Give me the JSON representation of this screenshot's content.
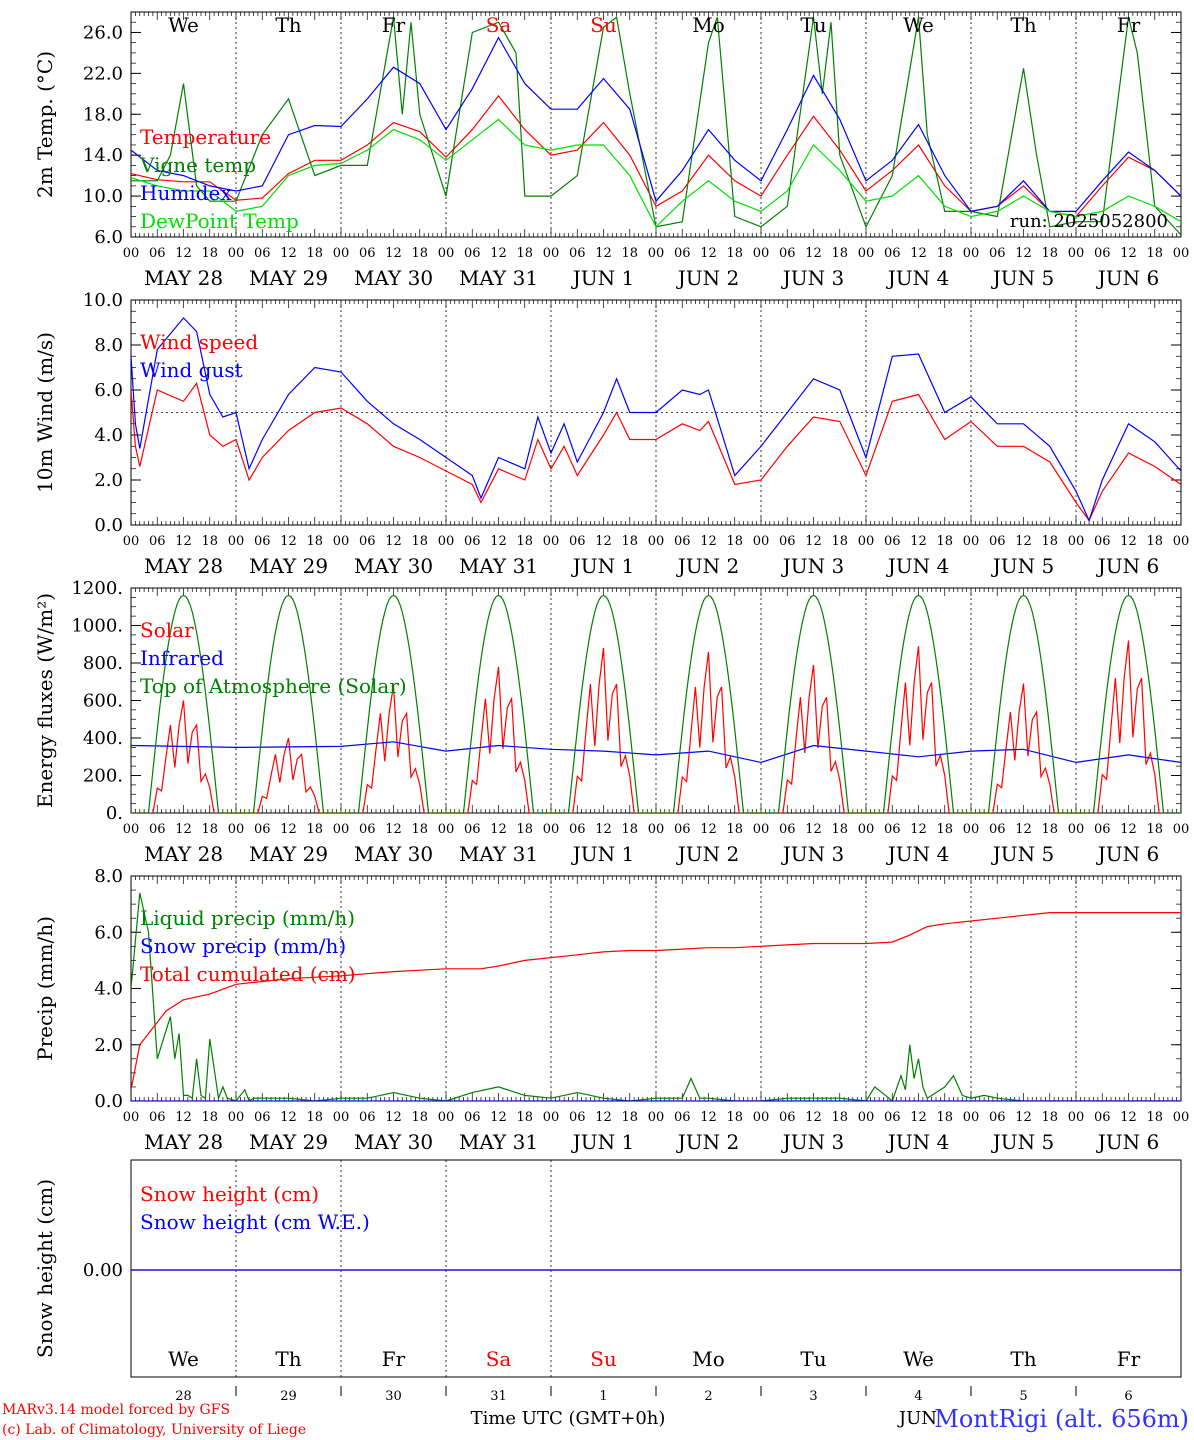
{
  "run_label": "run: 2025052800",
  "station": "MontRigi (alt. 656m)",
  "footer": {
    "model_line": "MARv3.14 model forced by GFS",
    "credit_line": "(c) Lab. of Climatology, University of Liege",
    "time_axis_label": "Time UTC (GMT+0h)",
    "month_label": "JUN"
  },
  "days": {
    "weekdays": [
      "We",
      "Th",
      "Fr",
      "Sa",
      "Su",
      "Mo",
      "Tu",
      "We",
      "Th",
      "Fr"
    ],
    "weekend_flags": [
      false,
      false,
      false,
      true,
      true,
      false,
      false,
      false,
      false,
      false
    ],
    "date_labels": [
      "MAY 28",
      "MAY 29",
      "MAY 30",
      "MAY 31",
      "JUN  1",
      "JUN  2",
      "JUN  3",
      "JUN  4",
      "JUN  5",
      "JUN  6"
    ],
    "day_numbers": [
      "28",
      "29",
      "30",
      "31",
      "1",
      "2",
      "3",
      "4",
      "5",
      "6"
    ],
    "hour_ticks": [
      "00",
      "06",
      "12",
      "18"
    ],
    "final_tick": "00"
  },
  "colors": {
    "red": "#ff0000",
    "dark_green": "#008000",
    "blue": "#0000ff",
    "light_green": "#00e000",
    "axis": "#000000",
    "station": "#3333ff"
  },
  "chart_data": [
    {
      "type": "line",
      "ylabel": "2m Temp. (°C)",
      "ylim": [
        6,
        28
      ],
      "yticks": [
        "6.0",
        "10.0",
        "14.0",
        "18.0",
        "22.0",
        "26.0"
      ],
      "ytick_values": [
        6,
        10,
        14,
        18,
        22,
        26
      ],
      "x_unit": "hours since MAY 28 00 UTC",
      "hline": null,
      "series": [
        {
          "name": "Temperature",
          "color": "#ff0000",
          "x": [
            0,
            6,
            12,
            18,
            24,
            30,
            36,
            42,
            48,
            54,
            60,
            66,
            72,
            78,
            84,
            90,
            96,
            102,
            108,
            114,
            120,
            126,
            132,
            138,
            144,
            150,
            156,
            162,
            168,
            174,
            180,
            186,
            192,
            198,
            204,
            210,
            216,
            222,
            228,
            234,
            240
          ],
          "y": [
            12.2,
            11.6,
            11.4,
            11.4,
            9.6,
            9.8,
            12.2,
            13.5,
            13.5,
            15.0,
            17.2,
            16.3,
            13.8,
            16.5,
            19.8,
            16.5,
            14.0,
            14.5,
            17.2,
            14.0,
            9.0,
            10.5,
            14.0,
            11.5,
            10.0,
            14.0,
            17.8,
            14.5,
            10.5,
            12.5,
            15.0,
            11.0,
            8.5,
            9.0,
            11.0,
            8.5,
            8.0,
            11.0,
            13.8,
            12.5,
            10.0
          ]
        },
        {
          "name": "Vigne temp",
          "color": "#008000",
          "x": [
            0,
            6,
            9,
            12,
            15,
            18,
            24,
            30,
            36,
            42,
            48,
            54,
            60,
            62,
            64,
            66,
            72,
            78,
            84,
            88,
            90,
            96,
            102,
            108,
            111,
            114,
            120,
            126,
            132,
            134,
            138,
            144,
            150,
            156,
            158,
            160,
            162,
            168,
            174,
            180,
            182,
            186,
            192,
            198,
            204,
            207,
            210,
            216,
            222,
            228,
            230,
            234,
            240
          ],
          "y": [
            11.5,
            11.5,
            14.0,
            21.0,
            11.0,
            9.5,
            9.5,
            16.0,
            19.5,
            12.0,
            13.0,
            13.0,
            27.5,
            18.0,
            27.0,
            18.0,
            10.0,
            26.0,
            27.0,
            24.0,
            10.0,
            10.0,
            12.0,
            26.5,
            27.5,
            20.0,
            7.0,
            7.5,
            25.0,
            27.5,
            8.0,
            7.0,
            9.0,
            27.5,
            20.0,
            27.0,
            14.0,
            7.0,
            12.0,
            27.5,
            16.0,
            8.5,
            8.5,
            8.0,
            22.5,
            14.0,
            7.0,
            7.5,
            7.5,
            27.5,
            24.0,
            9.0,
            6.2
          ]
        },
        {
          "name": "Humidex",
          "color": "#0000ff",
          "x": [
            0,
            6,
            12,
            18,
            24,
            30,
            36,
            42,
            48,
            54,
            60,
            66,
            72,
            78,
            84,
            90,
            96,
            102,
            108,
            114,
            120,
            126,
            132,
            138,
            144,
            150,
            156,
            162,
            168,
            174,
            180,
            186,
            192,
            198,
            204,
            210,
            216,
            222,
            228,
            234,
            240
          ],
          "y": [
            14.5,
            12.5,
            12.0,
            11.0,
            10.5,
            11.0,
            16.0,
            16.9,
            16.8,
            19.5,
            22.6,
            21.0,
            16.5,
            20.5,
            25.5,
            21.0,
            18.5,
            18.5,
            21.5,
            18.5,
            9.5,
            12.5,
            16.5,
            13.5,
            11.5,
            16.5,
            21.8,
            17.5,
            11.5,
            13.5,
            17.0,
            12.0,
            8.5,
            9.0,
            11.5,
            8.5,
            8.5,
            11.5,
            14.3,
            12.5,
            10.0
          ]
        },
        {
          "name": "DewPoint Temp",
          "color": "#00e000",
          "x": [
            0,
            6,
            12,
            18,
            24,
            30,
            36,
            42,
            48,
            54,
            60,
            66,
            72,
            78,
            84,
            90,
            96,
            102,
            108,
            114,
            120,
            126,
            132,
            138,
            144,
            150,
            156,
            162,
            168,
            174,
            180,
            186,
            192,
            198,
            204,
            210,
            216,
            222,
            228,
            234,
            240
          ],
          "y": [
            11.8,
            11.0,
            10.5,
            10.5,
            8.5,
            9.0,
            12.0,
            13.0,
            13.2,
            14.5,
            16.5,
            15.5,
            13.5,
            15.5,
            17.5,
            15.0,
            14.5,
            15.0,
            15.0,
            12.0,
            7.0,
            9.5,
            11.5,
            9.5,
            8.5,
            10.5,
            15.0,
            12.5,
            9.5,
            10.0,
            12.0,
            9.0,
            8.0,
            8.5,
            10.0,
            8.5,
            8.0,
            8.5,
            10.0,
            9.0,
            7.5
          ]
        }
      ]
    },
    {
      "type": "line",
      "ylabel": "10m Wind (m/s)",
      "ylim": [
        0,
        10
      ],
      "yticks": [
        "0.0",
        "2.0",
        "4.0",
        "6.0",
        "8.0",
        "10.0"
      ],
      "ytick_values": [
        0,
        2,
        4,
        6,
        8,
        10
      ],
      "x_unit": "hours since MAY 28 00 UTC",
      "hline": 5.0,
      "series": [
        {
          "name": "Wind speed",
          "color": "#ff0000",
          "x": [
            0,
            1,
            2,
            6,
            12,
            15,
            18,
            21,
            24,
            27,
            30,
            36,
            42,
            48,
            54,
            60,
            66,
            72,
            78,
            80,
            84,
            90,
            93,
            96,
            99,
            102,
            108,
            111,
            114,
            120,
            126,
            130,
            132,
            138,
            144,
            150,
            156,
            162,
            168,
            174,
            180,
            186,
            192,
            198,
            204,
            210,
            216,
            219,
            222,
            228,
            234,
            240
          ],
          "y": [
            6.0,
            3.5,
            2.6,
            6.0,
            5.5,
            6.3,
            4.0,
            3.5,
            3.8,
            2.0,
            3.0,
            4.2,
            5.0,
            5.2,
            4.5,
            3.5,
            3.0,
            2.4,
            1.8,
            1.0,
            2.5,
            2.0,
            3.8,
            2.5,
            3.5,
            2.2,
            4.0,
            5.0,
            3.8,
            3.8,
            4.5,
            4.2,
            4.6,
            1.8,
            2.0,
            3.5,
            4.8,
            4.6,
            2.2,
            5.5,
            5.8,
            3.8,
            4.6,
            3.5,
            3.5,
            2.8,
            1.0,
            0.2,
            1.5,
            3.2,
            2.6,
            1.8
          ]
        },
        {
          "name": "Wind gust",
          "color": "#0000ff",
          "x": [
            0,
            1,
            2,
            6,
            12,
            15,
            18,
            21,
            24,
            27,
            30,
            36,
            42,
            48,
            54,
            60,
            66,
            72,
            78,
            80,
            84,
            90,
            93,
            96,
            99,
            102,
            108,
            111,
            114,
            120,
            126,
            130,
            132,
            138,
            144,
            150,
            156,
            162,
            168,
            174,
            180,
            186,
            192,
            198,
            204,
            210,
            216,
            219,
            222,
            228,
            234,
            240
          ],
          "y": [
            7.5,
            4.5,
            3.4,
            7.8,
            9.2,
            8.6,
            5.8,
            4.8,
            5.0,
            2.5,
            3.8,
            5.8,
            7.0,
            6.8,
            5.5,
            4.5,
            3.8,
            3.0,
            2.2,
            1.2,
            3.0,
            2.5,
            4.8,
            3.2,
            4.5,
            2.8,
            5.0,
            6.5,
            5.0,
            5.0,
            6.0,
            5.8,
            6.0,
            2.2,
            3.5,
            5.0,
            6.5,
            6.0,
            3.0,
            7.5,
            7.6,
            5.0,
            5.7,
            4.5,
            4.5,
            3.5,
            1.5,
            0.2,
            2.0,
            4.5,
            3.7,
            2.4
          ]
        }
      ]
    },
    {
      "type": "line",
      "ylabel": "Energy fluxes (W/m²)",
      "ylim": [
        0,
        1200
      ],
      "yticks": [
        "0.",
        "200.",
        "400.",
        "600.",
        "800.",
        "1000.",
        "1200."
      ],
      "ytick_values": [
        0,
        200,
        400,
        600,
        800,
        1000,
        1200
      ],
      "x_unit": "hours since MAY 28 00 UTC",
      "hline": null,
      "series": [
        {
          "name": "Solar",
          "color": "#ff0000",
          "peak_hour_of_day": 12,
          "daily_peaks": [
            600,
            400,
            680,
            780,
            880,
            860,
            790,
            890,
            690,
            920
          ]
        },
        {
          "name": "Infrared",
          "color": "#0000ff",
          "x": [
            0,
            24,
            48,
            60,
            72,
            84,
            96,
            108,
            120,
            132,
            144,
            156,
            168,
            180,
            192,
            204,
            216,
            228,
            240
          ],
          "y": [
            360,
            350,
            355,
            380,
            330,
            360,
            340,
            330,
            310,
            330,
            270,
            360,
            330,
            300,
            330,
            340,
            270,
            310,
            270
          ]
        },
        {
          "name": "Top of Atmosphere (Solar)",
          "color": "#008000",
          "daily_peak": 1160,
          "daylight_hours": [
            4,
            20
          ]
        }
      ]
    },
    {
      "type": "line",
      "ylabel": "Precip (mm/h)",
      "ylim": [
        0,
        8
      ],
      "yticks": [
        "0.0",
        "2.0",
        "4.0",
        "6.0",
        "8.0"
      ],
      "ytick_values": [
        0,
        2,
        4,
        6,
        8
      ],
      "x_unit": "hours since MAY 28 00 UTC",
      "hline": null,
      "series": [
        {
          "name": "Liquid precip (mm/h)",
          "color": "#008000",
          "x": [
            0,
            2,
            4,
            6,
            8,
            9,
            10,
            11,
            12,
            13,
            14,
            15,
            16,
            17,
            18,
            20,
            21,
            22,
            24,
            26,
            27,
            28,
            30,
            36,
            42,
            48,
            54,
            60,
            66,
            72,
            78,
            84,
            90,
            96,
            102,
            108,
            114,
            120,
            126,
            128,
            130,
            132,
            138,
            144,
            150,
            156,
            162,
            168,
            170,
            174,
            176,
            177,
            178,
            179,
            180,
            181,
            182,
            186,
            188,
            190,
            192,
            195,
            198,
            204,
            210,
            216,
            240
          ],
          "y": [
            4.0,
            7.4,
            6.0,
            1.5,
            2.5,
            3.0,
            1.5,
            2.4,
            0.2,
            0.2,
            0.1,
            1.5,
            0.2,
            0.1,
            2.2,
            0.1,
            0.5,
            0.1,
            0.0,
            0.4,
            0.0,
            0.1,
            0.1,
            0.1,
            0.0,
            0.1,
            0.1,
            0.3,
            0.1,
            0.0,
            0.3,
            0.5,
            0.2,
            0.1,
            0.3,
            0.1,
            0.0,
            0.1,
            0.1,
            0.8,
            0.1,
            0.1,
            0.0,
            0.0,
            0.1,
            0.1,
            0.1,
            0.0,
            0.5,
            0.0,
            0.9,
            0.4,
            2.0,
            0.8,
            1.5,
            0.5,
            0.1,
            0.5,
            0.9,
            0.2,
            0.1,
            0.2,
            0.1,
            0.0,
            0.0,
            0.0,
            0.0
          ]
        },
        {
          "name": "Snow precip (mm/h)",
          "color": "#0000ff",
          "x": [
            0,
            240
          ],
          "y": [
            0,
            0
          ]
        },
        {
          "name": "Total cumulated (cm)",
          "color": "#ff0000",
          "x": [
            0,
            2,
            6,
            8,
            12,
            18,
            24,
            30,
            36,
            48,
            60,
            72,
            80,
            84,
            90,
            96,
            102,
            108,
            114,
            120,
            126,
            132,
            138,
            144,
            150,
            156,
            162,
            168,
            174,
            178,
            182,
            186,
            192,
            198,
            204,
            210,
            216,
            222,
            228,
            234,
            240
          ],
          "y": [
            0.4,
            2.0,
            2.8,
            3.2,
            3.6,
            3.8,
            4.15,
            4.25,
            4.35,
            4.45,
            4.6,
            4.7,
            4.7,
            4.8,
            5.0,
            5.1,
            5.2,
            5.3,
            5.35,
            5.35,
            5.4,
            5.45,
            5.45,
            5.5,
            5.55,
            5.6,
            5.6,
            5.6,
            5.65,
            5.9,
            6.2,
            6.3,
            6.4,
            6.5,
            6.6,
            6.7,
            6.7,
            6.7,
            6.7,
            6.7,
            6.7
          ]
        }
      ]
    },
    {
      "type": "line",
      "ylabel": "Snow height (cm)",
      "ytick_label": "0.00",
      "x_unit": "hours since MAY 28 00 UTC",
      "series": [
        {
          "name": "Snow height (cm)",
          "color": "#ff0000",
          "x": [
            0,
            240
          ],
          "y": [
            0,
            0
          ]
        },
        {
          "name": "Snow height (cm W.E.)",
          "color": "#0000ff",
          "x": [
            0,
            240
          ],
          "y": [
            0,
            0
          ]
        }
      ]
    }
  ]
}
